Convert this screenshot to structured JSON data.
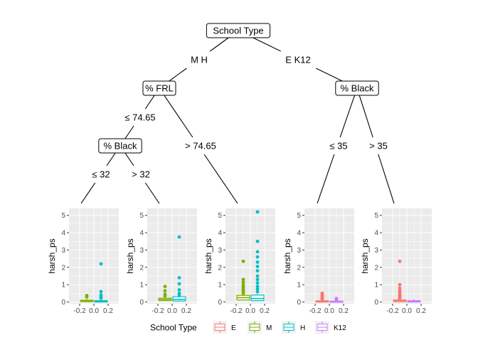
{
  "chart_data": {
    "type": "decision-tree-boxplot",
    "title": "",
    "tree": {
      "root": {
        "label": "School Type",
        "left_edge": "M H",
        "right_edge": "E K12",
        "left": {
          "label": "% FRL",
          "left_edge": "≤ 74.65",
          "right_edge": "> 74.65",
          "left": {
            "label": "% Black",
            "left_edge": "≤ 32",
            "right_edge": "> 32"
          }
        },
        "right": {
          "label": "% Black",
          "left_edge": "≤ 35",
          "right_edge": "> 35"
        }
      }
    },
    "panels": [
      {
        "ylabel": "harsh_ps",
        "ylim": [
          -0.1,
          5.4
        ],
        "yticks": [
          "0",
          "1",
          "2",
          "3",
          "4",
          "5"
        ],
        "xticks": [
          "-0.2",
          "0.0",
          "0.2"
        ],
        "boxes": [
          {
            "group": "M",
            "x": -0.1,
            "q1": 0.02,
            "median": 0.06,
            "q3": 0.1,
            "outliers": [
              0.37,
              0.3
            ]
          },
          {
            "group": "H",
            "x": 0.1,
            "q1": 0.0,
            "median": 0.03,
            "q3": 0.08,
            "outliers": [
              2.2,
              0.6,
              0.4,
              0.3,
              0.22
            ]
          }
        ]
      },
      {
        "ylabel": "harsh_ps",
        "ylim": [
          -0.1,
          5.4
        ],
        "yticks": [
          "0",
          "1",
          "2",
          "3",
          "4",
          "5"
        ],
        "xticks": [
          "-0.2",
          "0.0",
          "0.2"
        ],
        "boxes": [
          {
            "group": "M",
            "x": -0.1,
            "q1": 0.08,
            "median": 0.15,
            "q3": 0.22,
            "outliers": [
              0.9,
              0.65,
              0.45,
              0.35
            ]
          },
          {
            "group": "H",
            "x": 0.1,
            "q1": 0.05,
            "median": 0.15,
            "q3": 0.3,
            "outliers": [
              3.75,
              1.4,
              1.05,
              0.7,
              0.5,
              0.4
            ]
          }
        ]
      },
      {
        "ylabel": "harsh_ps",
        "ylim": [
          -0.1,
          5.4
        ],
        "yticks": [
          "0",
          "1",
          "2",
          "3",
          "4",
          "5"
        ],
        "xticks": [
          "-0.2",
          "0.0",
          "0.2"
        ],
        "boxes": [
          {
            "group": "M",
            "x": -0.1,
            "q1": 0.12,
            "median": 0.25,
            "q3": 0.38,
            "outliers": [
              2.35,
              1.3,
              1.15,
              1.0,
              0.9,
              0.8,
              0.7,
              0.6,
              0.5
            ]
          },
          {
            "group": "H",
            "x": 0.1,
            "q1": 0.08,
            "median": 0.2,
            "q3": 0.4,
            "outliers": [
              5.2,
              3.5,
              2.9,
              2.6,
              2.3,
              2.05,
              1.8,
              1.5,
              1.3,
              1.1,
              0.9,
              0.75,
              0.6
            ]
          }
        ]
      },
      {
        "ylabel": "harsh_ps",
        "ylim": [
          -0.1,
          5.4
        ],
        "yticks": [
          "0",
          "1",
          "2",
          "3",
          "4",
          "5"
        ],
        "xticks": [
          "-0.2",
          "0.0",
          "0.2"
        ],
        "boxes": [
          {
            "group": "E",
            "x": -0.1,
            "q1": 0.0,
            "median": 0.03,
            "q3": 0.07,
            "outliers": [
              0.5,
              0.42,
              0.35,
              0.28,
              0.22,
              0.17
            ]
          },
          {
            "group": "K12",
            "x": 0.1,
            "q1": 0.0,
            "median": 0.02,
            "q3": 0.05,
            "outliers": [
              0.2,
              0.12
            ]
          }
        ]
      },
      {
        "ylabel": "harsh_ps",
        "ylim": [
          -0.1,
          5.4
        ],
        "yticks": [
          "0",
          "1",
          "2",
          "3",
          "4",
          "5"
        ],
        "xticks": [
          "-0.2",
          "0.0",
          "0.2"
        ],
        "boxes": [
          {
            "group": "E",
            "x": -0.1,
            "q1": 0.02,
            "median": 0.06,
            "q3": 0.12,
            "outliers": [
              2.35,
              1.0,
              0.8,
              0.65,
              0.55,
              0.45,
              0.38,
              0.3,
              0.25,
              0.2
            ]
          },
          {
            "group": "K12",
            "x": 0.1,
            "q1": 0.0,
            "median": 0.04,
            "q3": 0.08,
            "outliers": []
          }
        ]
      }
    ],
    "legend": {
      "title": "School Type",
      "placement": "bottom",
      "entries": [
        {
          "name": "E",
          "color": "#F8766D"
        },
        {
          "name": "M",
          "color": "#7CAE00"
        },
        {
          "name": "H",
          "color": "#00BFC4"
        },
        {
          "name": "K12",
          "color": "#C77CFF"
        }
      ]
    },
    "colors": {
      "E": "#F8766D",
      "M": "#7CAE00",
      "H": "#00BFC4",
      "K12": "#C77CFF"
    },
    "panel_background": "#EBEBEB",
    "grid": true
  }
}
